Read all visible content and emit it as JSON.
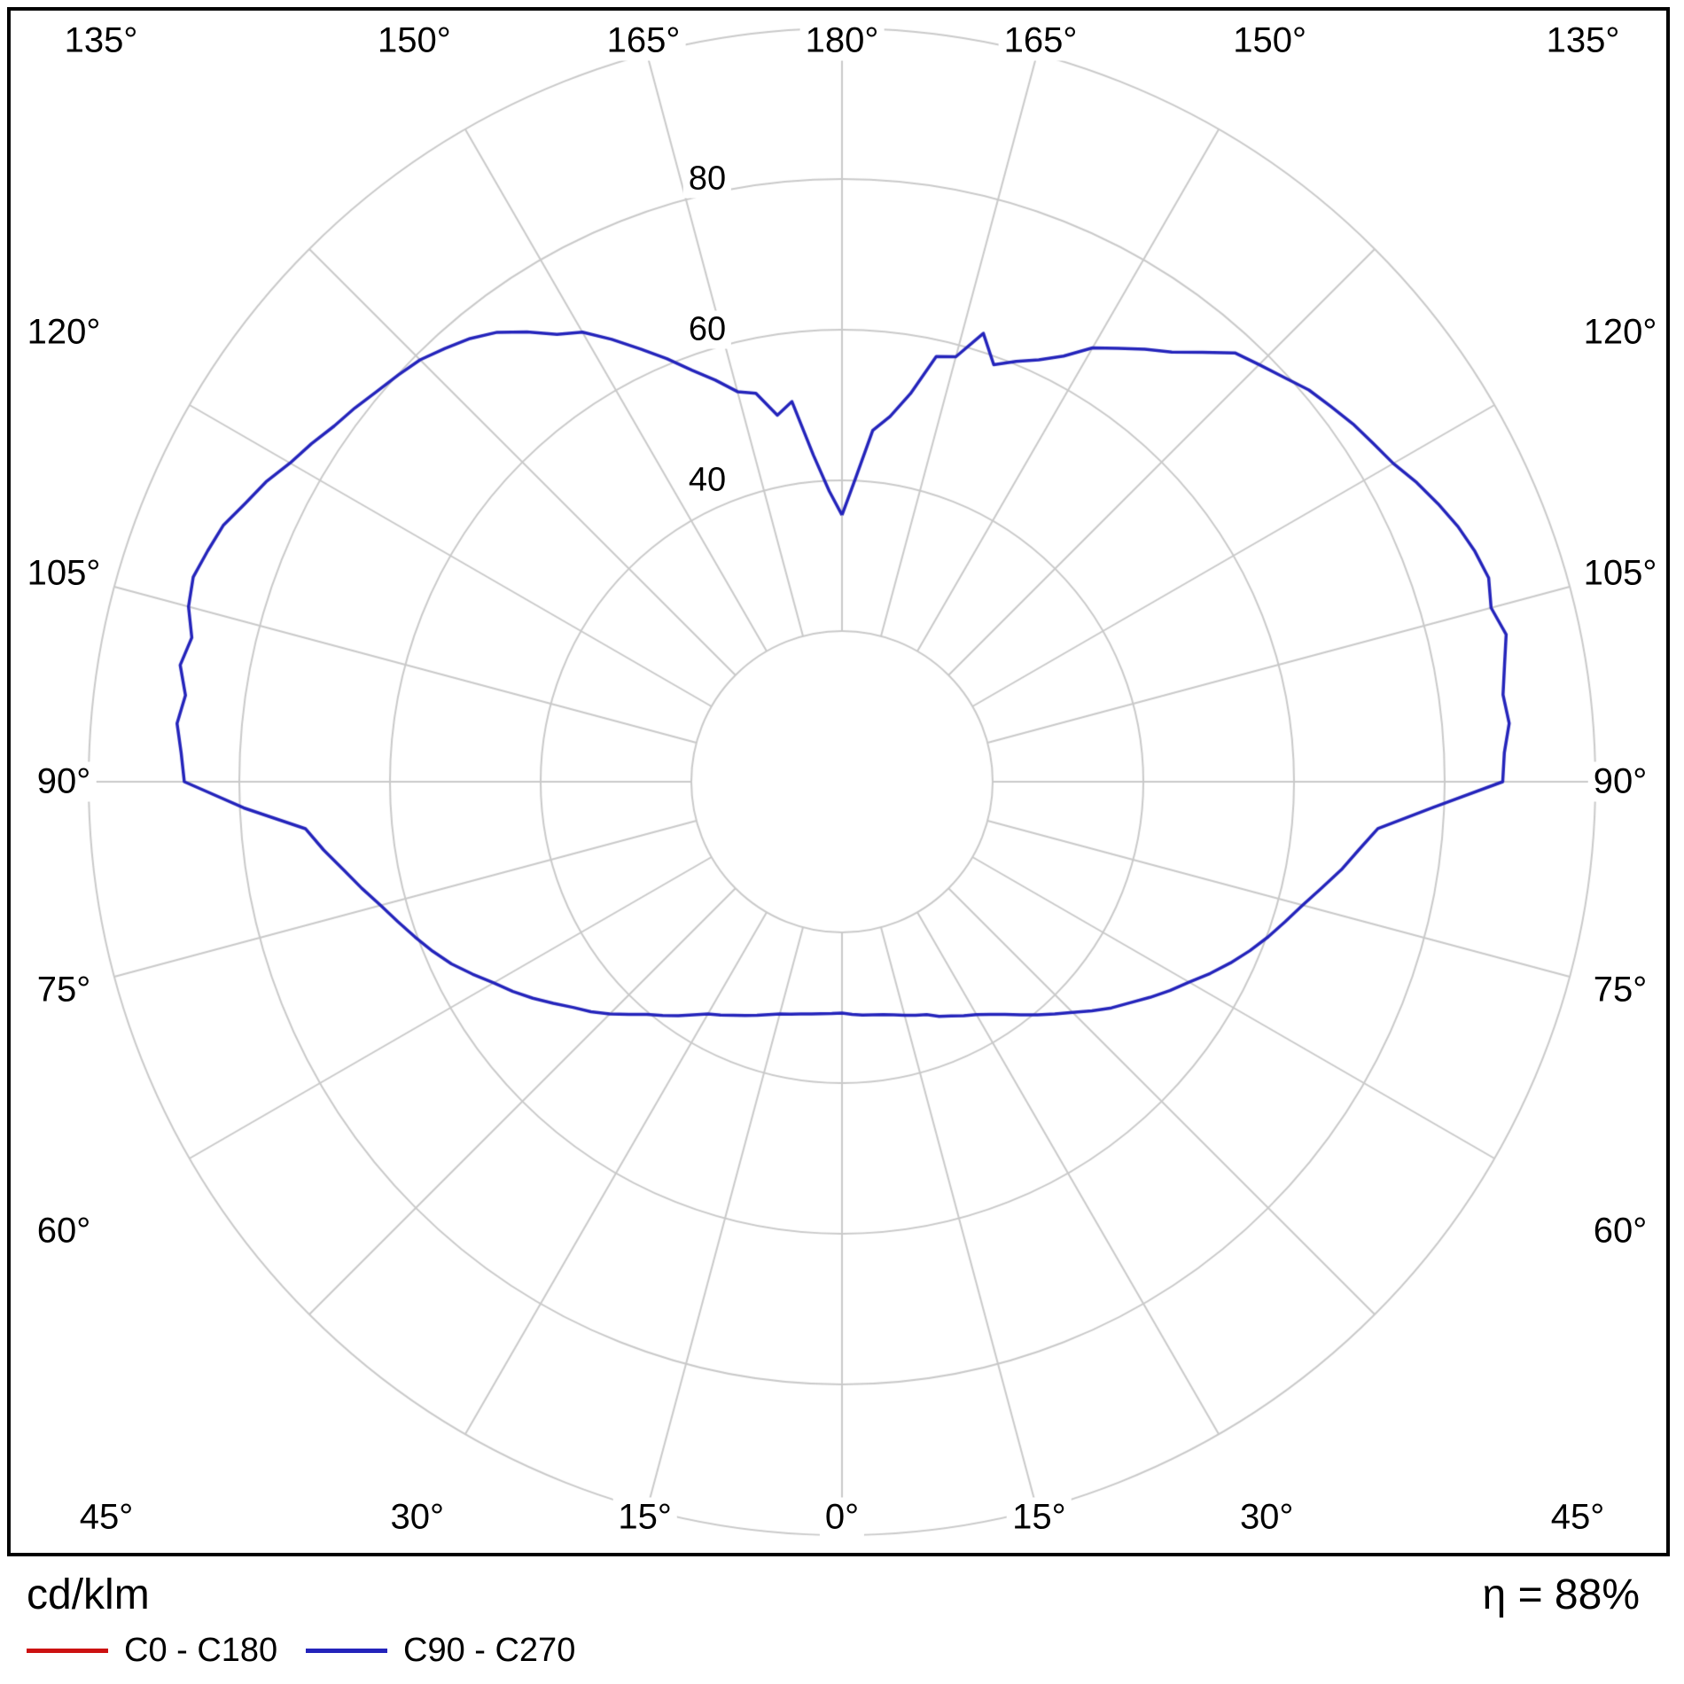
{
  "chart_data": {
    "type": "polar-line",
    "unit": "cd/klm",
    "efficiency": "η = 88%",
    "angle_step_deg": 15,
    "angle_labels": [
      "0°",
      "15°",
      "30°",
      "45°",
      "60°",
      "75°",
      "90°",
      "105°",
      "120°",
      "135°",
      "150°",
      "165°",
      "180°"
    ],
    "radial_ticks": [
      20,
      40,
      60,
      80,
      100
    ],
    "radial_tick_labels": [
      {
        "text": "40",
        "value": 40
      },
      {
        "text": "60",
        "value": 60
      },
      {
        "text": "80",
        "value": 80
      }
    ],
    "grid_color": "#c9c9c9",
    "frame_color": "#000000",
    "series": [
      {
        "name": "C0 - C180",
        "color": "#cc1111",
        "points": []
      },
      {
        "name": "C90 - C270",
        "color": "#2424bb",
        "points": [
          [
            -180,
            35.4
          ],
          [
            -177.5,
            38.6
          ],
          [
            -175,
            43.5
          ],
          [
            -172.5,
            50.9
          ],
          [
            -170,
            49.4
          ],
          [
            -167.5,
            52.8
          ],
          [
            -165,
            53.6
          ],
          [
            -162.5,
            55.9
          ],
          [
            -160,
            58.1
          ],
          [
            -157.5,
            60.8
          ],
          [
            -155,
            63.4
          ],
          [
            -152.5,
            66.2
          ],
          [
            -150,
            68.9
          ],
          [
            -147.5,
            70.4
          ],
          [
            -145,
            72.9
          ],
          [
            -142.5,
            75.2
          ],
          [
            -140,
            76.8
          ],
          [
            -137.5,
            78.0
          ],
          [
            -135,
            79.2
          ],
          [
            -132.5,
            79.9
          ],
          [
            -130,
            80.6
          ],
          [
            -127.5,
            81.5
          ],
          [
            -125,
            82.3
          ],
          [
            -122.5,
            83.5
          ],
          [
            -120,
            84.6
          ],
          [
            -117.5,
            86.2
          ],
          [
            -115,
            87.4
          ],
          [
            -112.5,
            88.9
          ],
          [
            -110,
            89.6
          ],
          [
            -107.5,
            90.3
          ],
          [
            -105,
            89.8
          ],
          [
            -102.5,
            88.4
          ],
          [
            -100,
            89.2
          ],
          [
            -97.5,
            87.9
          ],
          [
            -95,
            88.6
          ],
          [
            -92.5,
            87.8
          ],
          [
            -90,
            87.3
          ],
          [
            -87.5,
            79.5
          ],
          [
            -85,
            71.5
          ],
          [
            -82.5,
            69.4
          ],
          [
            -80,
            67.2
          ],
          [
            -77.5,
            65.3
          ],
          [
            -75,
            63.4
          ],
          [
            -72.5,
            61.8
          ],
          [
            -70,
            60.3
          ],
          [
            -67.5,
            58.8
          ],
          [
            -65,
            57.2
          ],
          [
            -62.5,
            55.3
          ],
          [
            -60,
            53.4
          ],
          [
            -57.5,
            51.8
          ],
          [
            -55,
            50.1
          ],
          [
            -52.5,
            48.3
          ],
          [
            -50,
            46.6
          ],
          [
            -47.5,
            45.2
          ],
          [
            -45,
            43.6
          ],
          [
            -42.5,
            41.9
          ],
          [
            -40,
            40.3
          ],
          [
            -37.5,
            39.1
          ],
          [
            -35,
            37.9
          ],
          [
            -32.5,
            36.7
          ],
          [
            -30,
            35.6
          ],
          [
            -27.5,
            34.9
          ],
          [
            -25,
            34.2
          ],
          [
            -22.5,
            33.6
          ],
          [
            -20,
            33.0
          ],
          [
            -17.5,
            32.4
          ],
          [
            -15,
            31.9
          ],
          [
            -12.5,
            31.6
          ],
          [
            -10,
            31.3
          ],
          [
            -7.5,
            31.1
          ],
          [
            -5,
            30.9
          ],
          [
            -2.5,
            30.8
          ],
          [
            0,
            30.7
          ],
          [
            2.5,
            30.9
          ],
          [
            5,
            31.1
          ],
          [
            7.5,
            31.2
          ],
          [
            10,
            31.4
          ],
          [
            12.5,
            31.7
          ],
          [
            15,
            32.1
          ],
          [
            17.5,
            32.5
          ],
          [
            20,
            32.9
          ],
          [
            22.5,
            33.7
          ],
          [
            25,
            34.3
          ],
          [
            27.5,
            35.0
          ],
          [
            30,
            35.7
          ],
          [
            32.5,
            36.6
          ],
          [
            35,
            37.7
          ],
          [
            37.5,
            39.0
          ],
          [
            40,
            40.4
          ],
          [
            42.5,
            41.8
          ],
          [
            45,
            43.3
          ],
          [
            47.5,
            45.0
          ],
          [
            50,
            46.7
          ],
          [
            52.5,
            48.2
          ],
          [
            55,
            49.9
          ],
          [
            57.5,
            51.6
          ],
          [
            60,
            53.2
          ],
          [
            62.5,
            55.1
          ],
          [
            65,
            56.9
          ],
          [
            67.5,
            58.6
          ],
          [
            70,
            60.2
          ],
          [
            72.5,
            61.7
          ],
          [
            75,
            63.3
          ],
          [
            77.5,
            65.2
          ],
          [
            80,
            67.3
          ],
          [
            82.5,
            69.2
          ],
          [
            85,
            71.4
          ],
          [
            87.5,
            78.5
          ],
          [
            90,
            87.7
          ],
          [
            92.5,
            88.0
          ],
          [
            95,
            88.9
          ],
          [
            97.5,
            88.5
          ],
          [
            100,
            89.3
          ],
          [
            102.5,
            90.3
          ],
          [
            105,
            89.2
          ],
          [
            107.5,
            90.0
          ],
          [
            110,
            89.4
          ],
          [
            112.5,
            88.5
          ],
          [
            115,
            87.3
          ],
          [
            117.5,
            86.0
          ],
          [
            120,
            84.5
          ],
          [
            122.5,
            83.6
          ],
          [
            125,
            82.8
          ],
          [
            127.5,
            81.8
          ],
          [
            130,
            80.9
          ],
          [
            132.5,
            79.5
          ],
          [
            135,
            78.3
          ],
          [
            137.5,
            77.2
          ],
          [
            140,
            74.4
          ],
          [
            142.5,
            71.9
          ],
          [
            145,
            70.1
          ],
          [
            147.5,
            68.2
          ],
          [
            150,
            66.5
          ],
          [
            152.5,
            63.7
          ],
          [
            155,
            61.8
          ],
          [
            157.5,
            60.4
          ],
          [
            160,
            58.9
          ],
          [
            162.5,
            62.4
          ],
          [
            165,
            58.4
          ],
          [
            167.5,
            57.8
          ],
          [
            170,
            52.3
          ],
          [
            172.5,
            48.9
          ],
          [
            175,
            46.8
          ],
          [
            177.5,
            40.2
          ],
          [
            180,
            35.4
          ]
        ]
      }
    ]
  }
}
